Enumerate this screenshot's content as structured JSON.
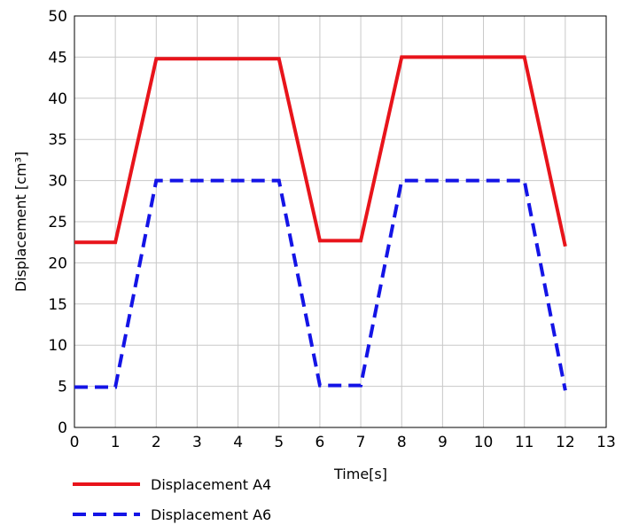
{
  "chart_data": {
    "type": "line",
    "xlabel": "Time[s]",
    "ylabel": "Displacement [cm³]",
    "xlim": [
      0,
      13
    ],
    "ylim": [
      0,
      50
    ],
    "x_ticks": [
      0,
      1,
      2,
      3,
      4,
      5,
      6,
      7,
      8,
      9,
      10,
      11,
      12,
      13
    ],
    "y_ticks": [
      0,
      5,
      10,
      15,
      20,
      25,
      30,
      35,
      40,
      45,
      50
    ],
    "grid": true,
    "legend_position": "bottom-left",
    "series": [
      {
        "name": "Displacement A4",
        "color": "#e8141b",
        "line_style": "solid",
        "x": [
          0,
          1,
          2,
          5,
          6,
          7,
          8,
          11,
          12
        ],
        "y": [
          22.5,
          22.5,
          44.8,
          44.8,
          22.7,
          22.7,
          45.0,
          45.0,
          22.0
        ]
      },
      {
        "name": "Displacement A6",
        "color": "#1414e6",
        "line_style": "dashed",
        "x": [
          0,
          1,
          2,
          5,
          6,
          7,
          8,
          11,
          12
        ],
        "y": [
          4.9,
          4.9,
          30.0,
          30.0,
          5.1,
          5.1,
          30.0,
          30.0,
          4.5
        ]
      }
    ]
  }
}
